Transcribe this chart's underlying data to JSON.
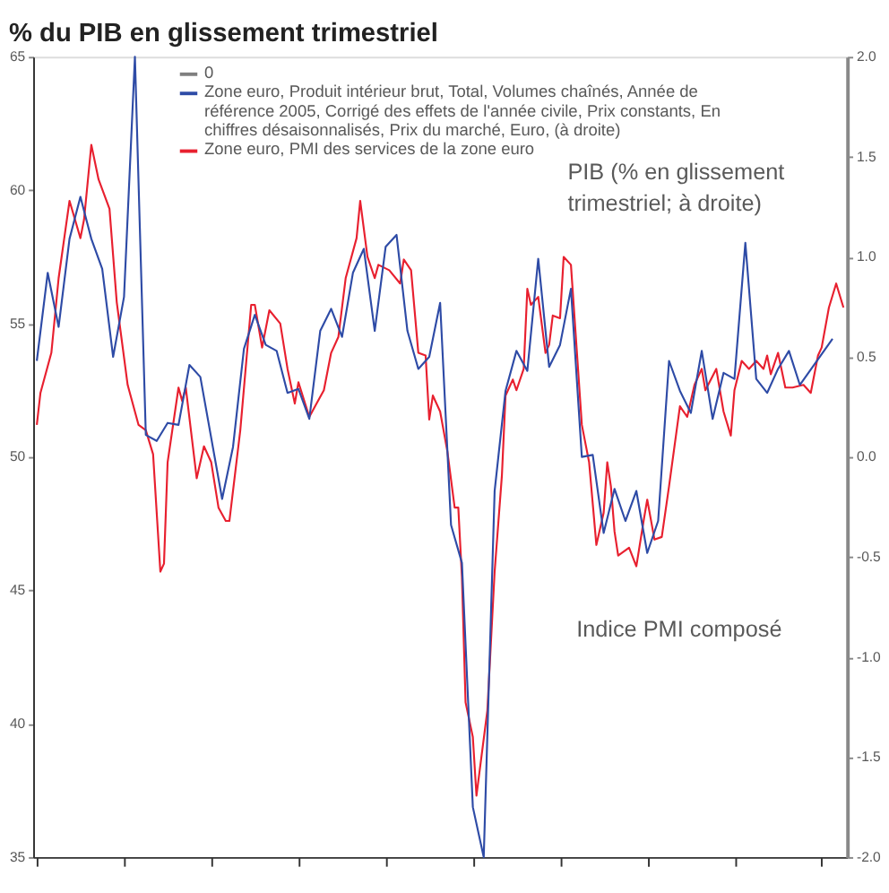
{
  "chart_data": {
    "type": "line",
    "title": "% du PIB en glissement trimestriel",
    "categories": [
      null,
      null,
      null,
      null,
      null,
      null,
      null,
      null,
      null,
      null,
      null,
      null,
      null,
      null,
      null,
      null,
      null,
      null,
      null,
      null,
      null,
      null,
      null,
      null,
      null,
      null,
      null,
      null,
      null,
      null,
      null,
      null,
      null,
      null,
      null,
      null,
      null,
      null,
      null,
      null,
      null,
      null,
      null,
      null,
      null,
      null,
      null,
      null,
      null,
      null,
      null,
      null,
      null,
      null,
      null,
      null,
      null,
      null,
      null,
      null,
      null,
      null,
      null,
      null,
      null,
      null,
      null,
      null,
      null,
      null,
      null,
      null,
      null,
      null,
      null,
      null,
      null,
      null,
      null,
      null,
      null,
      null,
      null,
      null,
      null,
      null,
      null,
      null,
      null,
      null,
      null,
      null,
      null,
      null,
      null,
      null,
      null,
      null,
      null,
      null,
      null,
      null,
      null,
      null,
      null,
      null,
      null,
      null,
      null,
      null,
      null,
      null,
      null,
      null,
      null,
      null,
      null,
      null,
      null,
      null,
      null,
      null,
      null,
      null,
      null,
      null,
      null,
      null,
      null,
      null,
      null,
      null,
      null,
      null,
      null,
      null,
      null,
      null,
      null,
      null,
      null,
      null,
      null,
      null,
      null,
      null,
      null,
      null,
      null,
      null,
      null,
      null,
      null,
      null,
      null,
      null,
      null,
      null,
      null,
      null,
      null,
      null,
      null,
      null,
      null,
      null,
      null,
      null,
      null,
      null,
      null,
      null,
      null,
      null,
      null,
      null,
      null,
      null,
      null,
      null,
      null,
      null,
      null,
      null,
      null,
      null,
      null,
      null,
      null,
      null,
      null,
      null,
      null,
      null,
      null,
      null,
      null,
      null,
      null,
      null,
      null,
      null,
      null,
      null,
      null,
      null,
      null,
      null,
      null,
      null,
      null,
      null,
      null,
      null,
      null,
      null,
      null,
      null,
      null,
      null,
      null,
      null,
      null
    ],
    "ylim": [
      35,
      65
    ],
    "yticks": [
      35,
      40,
      45,
      50,
      55,
      60,
      65
    ],
    "y2lim": [
      -2,
      2
    ],
    "y2ticks": [
      {
        "value": -2,
        "label": "-2.0"
      },
      -1.5,
      {
        "value": -1,
        "label": "-1.0"
      },
      -0.5,
      {
        "value": 0,
        "label": "0.0"
      },
      0.5,
      {
        "value": 1,
        "label": "1.0"
      },
      1.5,
      {
        "value": 2,
        "label": "2.0"
      }
    ],
    "tick_labels": "y",
    "grid": false,
    "legend": "top",
    "series": [
      {
        "name": "Zone euro, Produit intérieur brut, Total, Volumes chaînés, Année de référence 2005, Corrigé des effets de l'année civile, Prix constants, En chiffres désaisonnalisés, Prix du marché, Euro, (à droite)",
        "color": "#2e4ba6",
        "axis": "y2",
        "values": [
          0.48,
          null,
          null,
          0.92,
          null,
          null,
          0.65,
          null,
          null,
          1.09,
          null,
          null,
          1.3,
          null,
          null,
          1.09,
          null,
          null,
          0.94,
          null,
          null,
          0.5,
          null,
          null,
          0.8,
          null,
          null,
          2.0,
          null,
          null,
          0.11,
          null,
          null,
          0.08,
          null,
          null,
          0.17,
          null,
          null,
          0.16,
          null,
          null,
          0.46,
          null,
          null,
          0.4,
          null,
          null,
          null,
          null,
          null,
          -0.21,
          null,
          null,
          0.05,
          null,
          null,
          0.54,
          null,
          null,
          0.71,
          null,
          null,
          0.56,
          null,
          null,
          0.53,
          null,
          null,
          0.32,
          null,
          null,
          0.34,
          null,
          null,
          0.19,
          null,
          null,
          0.63,
          null,
          null,
          0.74,
          null,
          null,
          0.6,
          null,
          null,
          0.92,
          null,
          null,
          1.04,
          null,
          null,
          0.63,
          null,
          null,
          1.05,
          null,
          null,
          1.11,
          null,
          null,
          0.63,
          null,
          null,
          0.44,
          null,
          null,
          0.5,
          null,
          null,
          0.77,
          null,
          null,
          -0.34,
          null,
          null,
          -0.53,
          null,
          null,
          -1.75,
          null,
          null,
          -2.0,
          null,
          null,
          -0.17,
          null,
          null,
          0.33,
          null,
          null,
          0.53,
          null,
          null,
          0.43,
          null,
          null,
          0.99,
          null,
          null,
          0.45,
          null,
          null,
          0.56,
          null,
          null,
          0.84,
          null,
          null,
          0.0,
          null,
          null,
          0.01,
          null,
          null,
          -0.38,
          null,
          null,
          -0.16,
          null,
          null,
          -0.32,
          null,
          null,
          -0.17,
          null,
          null,
          -0.48,
          null,
          null,
          -0.32,
          null,
          null,
          0.48,
          null,
          null,
          0.33,
          null,
          null,
          0.22,
          null,
          null,
          0.53,
          null,
          null,
          0.19,
          null,
          null,
          0.42,
          null,
          null,
          0.39,
          null,
          null,
          1.07,
          null,
          null,
          0.39,
          null,
          null,
          0.32,
          null,
          null,
          0.44,
          null,
          null,
          0.53,
          null,
          null,
          0.36,
          null,
          null,
          null,
          null,
          null,
          null,
          null,
          null,
          0.59,
          null,
          null,
          null
        ]
      },
      {
        "name": "Zone euro, PMI des services de la zone euro",
        "color": "#e8202f",
        "values": [
          51.2,
          52.4,
          null,
          null,
          53.9,
          null,
          56.7,
          null,
          null,
          59.6,
          null,
          null,
          58.2,
          58.9,
          null,
          61.7,
          null,
          60.4,
          null,
          null,
          59.3,
          null,
          55.8,
          null,
          null,
          52.7,
          null,
          null,
          51.2,
          null,
          51.0,
          null,
          50.1,
          null,
          45.7,
          46.0,
          49.8,
          null,
          null,
          52.6,
          52.1,
          52.6,
          null,
          null,
          49.2,
          null,
          50.4,
          null,
          49.8,
          null,
          48.1,
          null,
          47.6,
          47.6,
          null,
          null,
          51.0,
          null,
          null,
          55.7,
          55.7,
          null,
          54.1,
          null,
          55.5,
          null,
          null,
          55.0,
          null,
          53.3,
          null,
          52.0,
          52.8,
          null,
          null,
          51.5,
          null,
          52.0,
          null,
          52.5,
          null,
          53.9,
          null,
          54.5,
          null,
          56.7,
          null,
          null,
          58.2,
          59.6,
          null,
          57.5,
          null,
          56.7,
          57.2,
          null,
          null,
          57.0,
          null,
          null,
          56.5,
          57.4,
          null,
          57.0,
          null,
          53.9,
          null,
          53.8,
          51.4,
          52.3,
          null,
          51.7,
          null,
          50.2,
          null,
          48.1,
          48.1,
          45.5,
          40.8,
          null,
          39.5,
          37.3,
          null,
          null,
          40.5,
          null,
          45.7,
          null,
          49.3,
          52.3,
          null,
          52.9,
          52.5,
          null,
          53.3,
          56.3,
          55.7,
          null,
          56.0,
          null,
          53.9,
          54.2,
          55.3,
          null,
          55.2,
          57.5,
          null,
          57.2,
          55.2,
          null,
          51.2,
          null,
          49.8,
          null,
          46.7,
          null,
          47.9,
          49.8,
          48.9,
          47.2,
          46.3,
          null,
          null,
          46.6,
          null,
          45.9,
          null,
          47.6,
          48.4,
          null,
          46.9,
          null,
          47.0,
          null,
          48.9,
          null,
          null,
          51.9,
          null,
          51.5,
          null,
          52.7,
          null,
          53.3,
          52.5,
          null,
          null,
          53.3,
          null,
          51.7,
          null,
          50.8,
          52.5,
          null,
          53.6,
          null,
          53.3,
          null,
          53.6,
          null,
          53.3,
          53.8,
          53.1,
          null,
          53.9,
          null,
          52.6,
          null,
          52.6,
          null,
          null,
          52.7,
          null,
          52.4,
          null,
          53.8,
          54.1,
          null,
          55.6,
          null,
          56.5,
          null,
          55.6
        ]
      }
    ],
    "annotations": [
      "0",
      "PIB (% en glissement trimestriel; à droite)",
      "Indice PMI composé"
    ]
  }
}
